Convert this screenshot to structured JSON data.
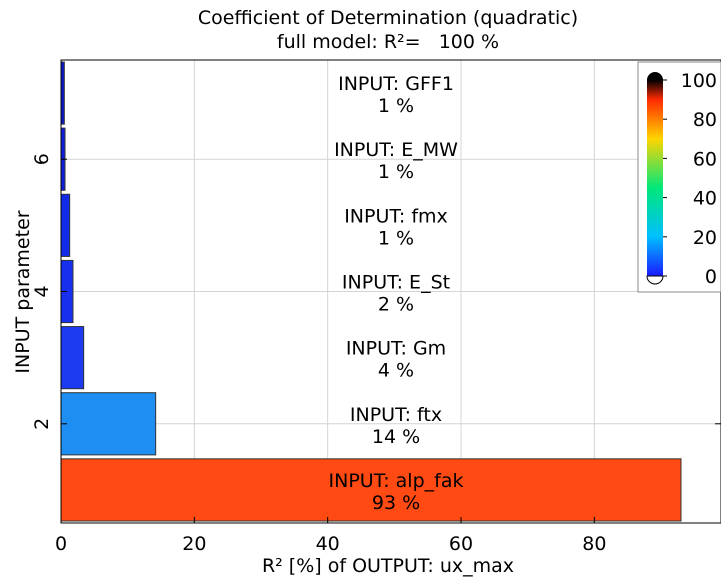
{
  "chart_data": {
    "type": "bar",
    "orientation": "horizontal",
    "title": "Coefficient of Determination (quadratic)",
    "subtitle": "full model: R²=   100 %",
    "xlabel": "R² [%] of OUTPUT: ux_max",
    "ylabel": "INPUT parameter",
    "xlim": [
      0,
      99
    ],
    "ylim": [
      0.5,
      7.5
    ],
    "x_ticks": [
      "0",
      "20",
      "40",
      "60",
      "80"
    ],
    "y_ticks": [
      "2",
      "4",
      "6"
    ],
    "grid": true,
    "bars": [
      {
        "name": "INPUT: alp_fak",
        "percent_label": "93 %",
        "value": 93,
        "color": "#ff4a14"
      },
      {
        "name": "INPUT: ftx",
        "percent_label": "14 %",
        "value": 14.2,
        "color": "#1f8ef2"
      },
      {
        "name": "INPUT: Gm",
        "percent_label": "4 %",
        "value": 3.4,
        "color": "#1c3af0"
      },
      {
        "name": "INPUT: E_St",
        "percent_label": "2 %",
        "value": 1.8,
        "color": "#1730ee"
      },
      {
        "name": "INPUT: fmx",
        "percent_label": "1 %",
        "value": 1.3,
        "color": "#122be8"
      },
      {
        "name": "INPUT: E_MW",
        "percent_label": "1 %",
        "value": 0.6,
        "color": "#0f1fd8"
      },
      {
        "name": "INPUT: GFF1",
        "percent_label": "1 %",
        "value": 0.5,
        "color": "#0c18c8"
      }
    ],
    "colorbar": {
      "range": [
        0,
        100
      ],
      "ticks": [
        "0",
        "20",
        "40",
        "60",
        "80",
        "100"
      ],
      "colors": [
        "#1a1aff",
        "#00bfff",
        "#00e87a",
        "#ffd400",
        "#ff2a00",
        "#000000"
      ]
    }
  }
}
